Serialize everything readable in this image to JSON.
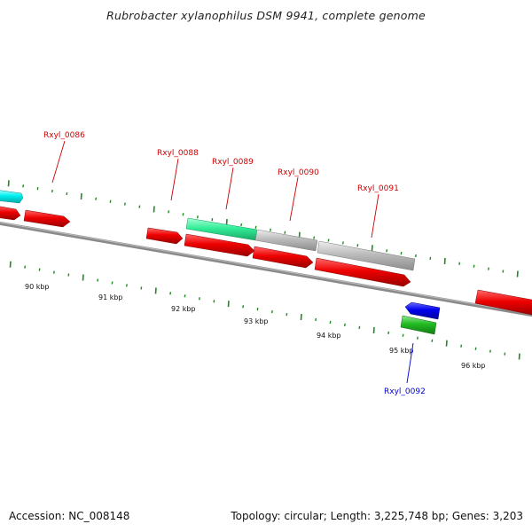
{
  "title": "Rubrobacter xylanophilus DSM 9941, complete genome",
  "footer": {
    "accession": "Accession: NC_008148",
    "summary": "Topology: circular; Length: 3,225,748 bp; Genes: 3,203"
  },
  "gene_labels": [
    "Rxyl_0086",
    "Rxyl_0088",
    "Rxyl_0089",
    "Rxyl_0090",
    "Rxyl_0091",
    "Rxyl_0092"
  ],
  "scale_labels": [
    "90 kbp",
    "91 kbp",
    "92 kbp",
    "93 kbp",
    "94 kbp",
    "95 kbp",
    "96 kbp"
  ],
  "colors": {
    "cds_forward": "#ee0000",
    "rna_light": "#00ffff",
    "rna_mid": "#33ee99",
    "pseudo": "#bbbbbb",
    "cds_reverse": "#0000ee",
    "rna_reverse": "#22bb22",
    "tick": "#228822",
    "backbone": "#777777",
    "label_forward": "#cc0000",
    "label_reverse": "#0000cc"
  }
}
